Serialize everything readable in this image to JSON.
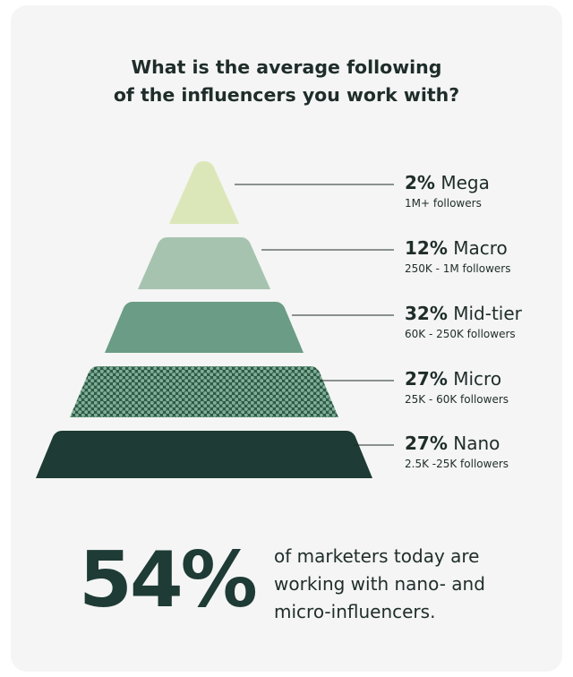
{
  "title": {
    "line1": "What is the average following",
    "line2": "of the influencers you work with?"
  },
  "chart_data": {
    "type": "pyramid",
    "tiers": [
      {
        "name": "Mega",
        "percent": 2,
        "percent_label": "2%",
        "range": "1M+ followers",
        "color": "#dbe7b8",
        "pattern": "solid"
      },
      {
        "name": "Macro",
        "percent": 12,
        "percent_label": "12%",
        "range": "250K - 1M followers",
        "color": "#a6c3b0",
        "pattern": "solid"
      },
      {
        "name": "Mid-tier",
        "percent": 32,
        "percent_label": "32%",
        "range": "60K - 250K followers",
        "color": "#6b9c85",
        "pattern": "solid"
      },
      {
        "name": "Micro",
        "percent": 27,
        "percent_label": "27%",
        "range": "25K - 60K followers",
        "color": "#4b8a6e",
        "pattern": "dots"
      },
      {
        "name": "Nano",
        "percent": 27,
        "percent_label": "27%",
        "range": "2.5K -25K followers",
        "color": "#1e3b35",
        "pattern": "solid"
      }
    ]
  },
  "stat": {
    "value": "54%",
    "line1": "of marketers today are",
    "line2": "working with nano- and",
    "line3": "micro-influencers."
  }
}
